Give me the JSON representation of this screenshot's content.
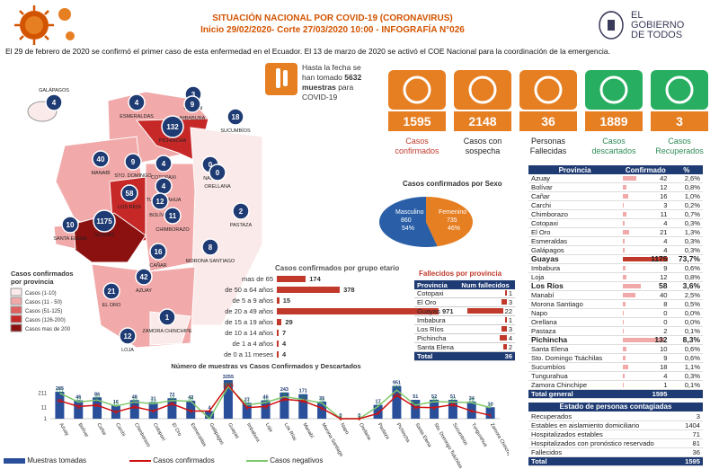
{
  "header": {
    "title": "SITUACIÓN NACIONAL POR  COVID-19 (CORONAVIRUS)",
    "subtitle": "Inicio 29/02/2020- Corte 27/03/2020 10:00  - INFOGRAFÍA N°026",
    "gov_line1": "EL",
    "gov_line2": "GOBIERNO",
    "gov_line3": "DE TODOS"
  },
  "intro": "El 29 de febrero de 2020 se confirmó el primer caso de esta enfermedad en el Ecuador. El 13 de marzo de 2020 se activó el COE Nacional para la coordinación de la emergencia.",
  "tests": {
    "line1": "Hasta la fecha se",
    "line2": "han tomado",
    "number": "5632",
    "line3": "muestras",
    "line4": "para",
    "line5": "COVID-19"
  },
  "kpis": [
    {
      "value": "1595",
      "label1": "Casos",
      "label2": "confirmados",
      "color": "#c0392b"
    },
    {
      "value": "2148",
      "label1": "Casos con",
      "label2": "sospecha",
      "color": "#222"
    },
    {
      "value": "36",
      "label1": "Personas",
      "label2": "Fallecidas",
      "color": "#222"
    },
    {
      "value": "1889",
      "label1": "Casos",
      "label2": "descartados",
      "color": "#2e8b57"
    },
    {
      "value": "3",
      "label1": "Casos",
      "label2": "Recuperados",
      "color": "#2e8b57"
    }
  ],
  "map": {
    "legend_title1": "Casos confirmados",
    "legend_title2": "por provincia",
    "legend": [
      {
        "label": "Casos (1-10)",
        "color": "#fbeaea"
      },
      {
        "label": "Casos (11 - 50)",
        "color": "#f1a9a9"
      },
      {
        "label": "Casos (51-125)",
        "color": "#e06060"
      },
      {
        "label": "Casos (126-200)",
        "color": "#c62828"
      },
      {
        "label": "Casos mas de 200",
        "color": "#8b1010"
      }
    ],
    "provinces": [
      {
        "name": "GALÁPAGOS",
        "value": "4"
      },
      {
        "name": "ESMERALDAS",
        "value": "4"
      },
      {
        "name": "CARCHI",
        "value": "3"
      },
      {
        "name": "IMBABURA",
        "value": "9"
      },
      {
        "name": "SUCUMBÍOS",
        "value": "18"
      },
      {
        "name": "PICHINCHA",
        "value": "132"
      },
      {
        "name": "MANABÍ",
        "value": "40"
      },
      {
        "name": "NAPO",
        "value": "0"
      },
      {
        "name": "ORELLANA",
        "value": "0"
      },
      {
        "name": "COTOPAXI",
        "value": "4"
      },
      {
        "name": "TUNGURAHUA",
        "value": "4"
      },
      {
        "name": "LOS RÍOS",
        "value": "58"
      },
      {
        "name": "SANTA ELENA",
        "value": "10"
      },
      {
        "name": "GUAYAS",
        "value": "1175"
      },
      {
        "name": "BOLÍVAR",
        "value": "12"
      },
      {
        "name": "CHIMBORAZO",
        "value": "11"
      },
      {
        "name": "PASTAZA",
        "value": "2"
      },
      {
        "name": "CAÑAR",
        "value": "16"
      },
      {
        "name": "MORONA SANTIAGO",
        "value": "8"
      },
      {
        "name": "EL ORO",
        "value": "21"
      },
      {
        "name": "AZUAY",
        "value": "42"
      },
      {
        "name": "LOJA",
        "value": "12"
      },
      {
        "name": "ZAMORA CHINCHIPE",
        "value": "1"
      },
      {
        "name": "STO. DOMINGO",
        "value": "9"
      }
    ]
  },
  "sex": {
    "title": "Casos confirmados por Sexo",
    "male_label": "Masculino",
    "male_value": "860",
    "male_pct": "54%",
    "male_num": 860,
    "female_label": "Femenino",
    "female_value": "735",
    "female_pct": "46%",
    "female_num": 735
  },
  "age": {
    "title": "Casos confirmados por grupo etario",
    "groups": [
      {
        "label": "mas de 65",
        "value": 174
      },
      {
        "label": "de 50 a 64 años",
        "value": 378
      },
      {
        "label": "de 5 a 9 años",
        "value": 15
      },
      {
        "label": "de 20 a 49 años",
        "value": 971
      },
      {
        "label": "de 15 a 19 años",
        "value": 29
      },
      {
        "label": "de 10 a 14 años",
        "value": 7
      },
      {
        "label": "de 1 a 4 años",
        "value": 4
      },
      {
        "label": "de 0 a 11 meses",
        "value": 4
      }
    ]
  },
  "deaths": {
    "title": "Fallecidos por provincia",
    "col1": "Provincia",
    "col2": "Num fallecidos",
    "rows": [
      {
        "name": "Cotopaxi",
        "value": "1",
        "num": 1
      },
      {
        "name": "El Oro",
        "value": "3",
        "num": 3
      },
      {
        "name": "Guayas",
        "value": "22",
        "num": 22
      },
      {
        "name": "Imbabura",
        "value": "1",
        "num": 1
      },
      {
        "name": "Los Ríos",
        "value": "3",
        "num": 3
      },
      {
        "name": "Pichincha",
        "value": "4",
        "num": 4
      },
      {
        "name": "Santa Elena",
        "value": "2",
        "num": 2
      }
    ],
    "total_label": "Total",
    "total_value": "36"
  },
  "province_table": {
    "col1": "Provincia",
    "col2": "Confirmado",
    "col3": "%",
    "rows": [
      {
        "name": "Azuay",
        "value": "42",
        "pct": "2,6%",
        "num": 42
      },
      {
        "name": "Bolívar",
        "value": "12",
        "pct": "0,8%",
        "num": 12
      },
      {
        "name": "Cañar",
        "value": "16",
        "pct": "1,0%",
        "num": 16
      },
      {
        "name": "Carchi",
        "value": "3",
        "pct": "0,2%",
        "num": 3
      },
      {
        "name": "Chimborazo",
        "value": "11",
        "pct": "0,7%",
        "num": 11
      },
      {
        "name": "Cotopaxi",
        "value": "4",
        "pct": "0,3%",
        "num": 4
      },
      {
        "name": "El Oro",
        "value": "21",
        "pct": "1,3%",
        "num": 21
      },
      {
        "name": "Esmeraldas",
        "value": "4",
        "pct": "0,3%",
        "num": 4
      },
      {
        "name": "Galápagos",
        "value": "4",
        "pct": "0,3%",
        "num": 4
      },
      {
        "name": "Guayas",
        "value": "1175",
        "pct": "73,7%",
        "num": 1175,
        "hl": true
      },
      {
        "name": "Imbabura",
        "value": "9",
        "pct": "0,6%",
        "num": 9
      },
      {
        "name": "Loja",
        "value": "12",
        "pct": "0,8%",
        "num": 12
      },
      {
        "name": "Los Ríos",
        "value": "58",
        "pct": "3,6%",
        "num": 58,
        "hl": true
      },
      {
        "name": "Manabí",
        "value": "40",
        "pct": "2,5%",
        "num": 40
      },
      {
        "name": "Morona Santiago",
        "value": "8",
        "pct": "0,5%",
        "num": 8
      },
      {
        "name": "Napo",
        "value": "0",
        "pct": "0,0%",
        "num": 0
      },
      {
        "name": "Orellana",
        "value": "0",
        "pct": "0,0%",
        "num": 0
      },
      {
        "name": "Pastaza",
        "value": "2",
        "pct": "0,1%",
        "num": 2
      },
      {
        "name": "Pichincha",
        "value": "132",
        "pct": "8,3%",
        "num": 132,
        "hl": true
      },
      {
        "name": "Santa Elena",
        "value": "10",
        "pct": "0,6%",
        "num": 10
      },
      {
        "name": "Sto. Domingo Tsáchilas",
        "value": "9",
        "pct": "0,6%",
        "num": 9
      },
      {
        "name": "Sucumbíos",
        "value": "18",
        "pct": "1,1%",
        "num": 18
      },
      {
        "name": "Tungurahua",
        "value": "4",
        "pct": "0,3%",
        "num": 4
      },
      {
        "name": "Zamora Chinchipe",
        "value": "1",
        "pct": "0,1%",
        "num": 1
      }
    ],
    "total_label": "Total general",
    "total_value": "1595"
  },
  "estado": {
    "title": "Estado de personas contagiadas",
    "rows": [
      {
        "label": "Recuperados",
        "value": "3"
      },
      {
        "label": "Estables en aislamiento domiciliario",
        "value": "1404"
      },
      {
        "label": "Hospitalizados estables",
        "value": "71"
      },
      {
        "label": "Hospitalizados con pronóstico reservado",
        "value": "81"
      },
      {
        "label": "Fallecidos",
        "value": "36"
      }
    ],
    "total_label": "Total",
    "total_value": "1595"
  },
  "chart_data": {
    "type": "bar",
    "title": "Número de muestras vs Casos Confirmados y Descartados",
    "categories": [
      "Azuay",
      "Bolívar",
      "Cañar",
      "Carchi",
      "Chimborazo",
      "Cotopaxi",
      "El Oro",
      "Esmeraldas",
      "Galápagos",
      "Guayas",
      "Imbabura",
      "Loja",
      "Los Ríos",
      "Manabí",
      "Morona Santiago",
      "Napo",
      "Orellana",
      "Pastaza",
      "Pichincha",
      "Santa Elena",
      "Sto. Domingo Tsáchilas",
      "Sucumbíos",
      "Tungurahua",
      "Zamora Chinchipe"
    ],
    "series": [
      {
        "name": "Muestras tomadas",
        "values": [
          285,
          46,
          86,
          16,
          48,
          31,
          72,
          42,
          4,
          3255,
          27,
          46,
          243,
          171,
          35,
          0,
          0,
          17,
          951,
          51,
          52,
          51,
          34,
          10
        ]
      },
      {
        "name": "Casos confirmados",
        "values": [
          42,
          12,
          16,
          3,
          11,
          4,
          21,
          4,
          4,
          1175,
          9,
          12,
          58,
          40,
          8,
          0,
          0,
          2,
          132,
          10,
          9,
          18,
          4,
          1
        ]
      },
      {
        "name": "Casos negativos",
        "values": [
          211,
          32,
          49,
          13,
          32,
          22,
          44,
          38,
          0,
          822,
          17,
          29,
          99,
          54,
          26,
          0,
          0,
          12,
          401,
          16,
          35,
          32,
          28,
          9
        ]
      }
    ],
    "yscale": "log"
  },
  "bottom_legend": {
    "tests": "Muestras tomadas",
    "confirmed": "Casos confirmados",
    "negative": "Casos negativos"
  }
}
